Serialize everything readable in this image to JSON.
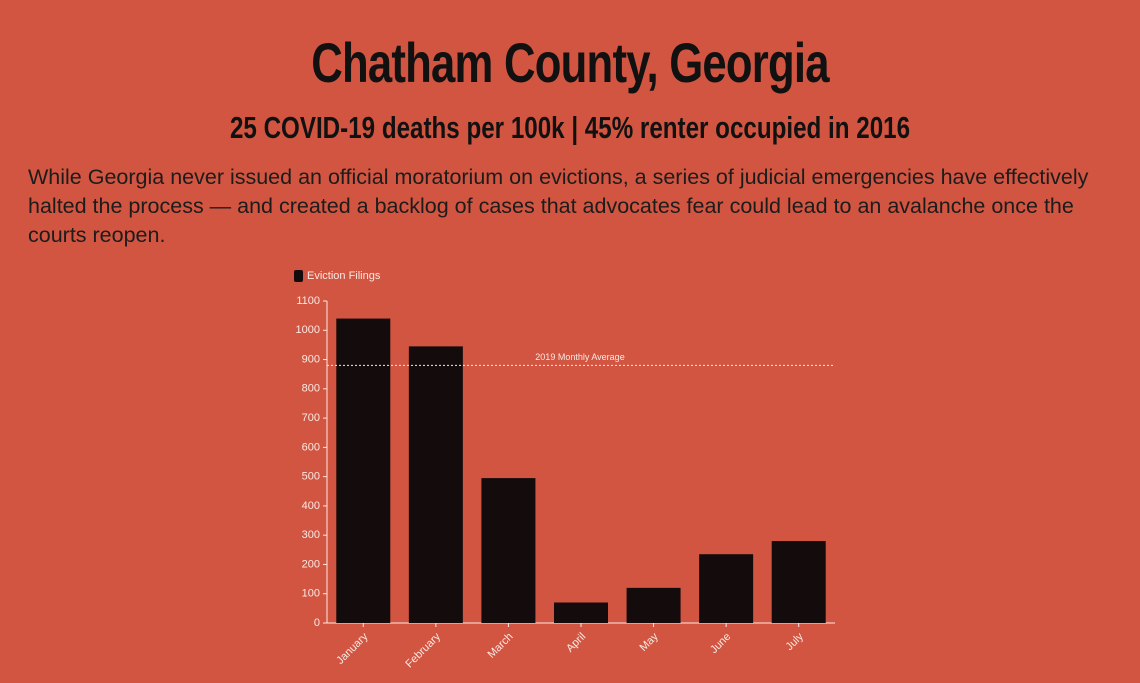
{
  "chart_data": {
    "type": "bar",
    "title": "Chatham County, Georgia",
    "subtitle": "25 COVID-19 deaths per 100k | 45% renter occupied in 2016",
    "description": "While Georgia never issued an official moratorium on evictions, a series of judicial emergencies have effectively halted the process — and created a backlog of cases that advocates fear could lead to an avalanche once the courts reopen.",
    "categories": [
      "January",
      "February",
      "March",
      "April",
      "May",
      "June",
      "July"
    ],
    "series": [
      {
        "name": "Eviction Filings",
        "color": "#140c0c",
        "values": [
          1040,
          945,
          495,
          70,
          120,
          235,
          280
        ]
      }
    ],
    "reference_line": {
      "label": "2019 Monthly Average",
      "value": 880
    },
    "ylim": [
      0,
      1100
    ],
    "yticks": [
      0,
      100,
      200,
      300,
      400,
      500,
      600,
      700,
      800,
      900,
      1000,
      1100
    ],
    "legend": "top-left"
  }
}
